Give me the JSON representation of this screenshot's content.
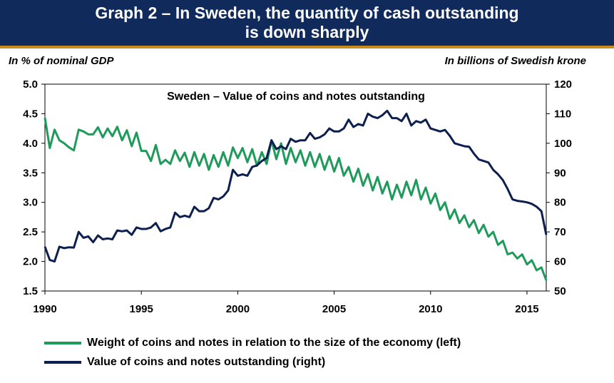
{
  "header": {
    "title_line1": "Graph 2 – In Sweden, the quantity of cash outstanding",
    "title_line2": "is down sharply"
  },
  "colors": {
    "header_bg": "#102a5c",
    "header_rule": "#c98a1d",
    "green": "#1e9b5a",
    "navy": "#0d1f4f"
  },
  "chart_data": {
    "type": "line",
    "title": "Sweden – Value of coins and notes outstanding",
    "left_axis_label": "In % of nominal GDP",
    "right_axis_label": "In billions of Swedish krone",
    "x_ticks": [
      1990,
      1995,
      2000,
      2005,
      2010,
      2015
    ],
    "xlim": [
      1990,
      2016
    ],
    "y_left_ticks": [
      "5.0",
      "4.5",
      "4.0",
      "3.5",
      "3.0",
      "2.5",
      "2.0",
      "1.5"
    ],
    "y_left_lim": [
      1.5,
      5.0
    ],
    "y_right_ticks": [
      "120",
      "110",
      "100",
      "90",
      "80",
      "70",
      "60",
      "50"
    ],
    "y_right_lim": [
      50,
      120
    ],
    "series": [
      {
        "name": "Weight of coins and notes in relation to the size of the economy (left)",
        "axis": "left",
        "color": "#1e9b5a",
        "points": [
          [
            1990.0,
            4.43
          ],
          [
            1990.25,
            3.92
          ],
          [
            1990.5,
            4.23
          ],
          [
            1990.75,
            4.05
          ],
          [
            1991.0,
            4.0
          ],
          [
            1991.25,
            3.93
          ],
          [
            1991.5,
            3.88
          ],
          [
            1991.75,
            4.23
          ],
          [
            1992.0,
            4.2
          ],
          [
            1992.25,
            4.15
          ],
          [
            1992.5,
            4.15
          ],
          [
            1992.75,
            4.27
          ],
          [
            1993.0,
            4.1
          ],
          [
            1993.25,
            4.25
          ],
          [
            1993.5,
            4.12
          ],
          [
            1993.75,
            4.28
          ],
          [
            1994.0,
            4.05
          ],
          [
            1994.25,
            4.22
          ],
          [
            1994.5,
            3.95
          ],
          [
            1994.75,
            4.18
          ],
          [
            1995.0,
            3.87
          ],
          [
            1995.25,
            3.87
          ],
          [
            1995.5,
            3.7
          ],
          [
            1995.75,
            3.97
          ],
          [
            1996.0,
            3.65
          ],
          [
            1996.25,
            3.72
          ],
          [
            1996.5,
            3.65
          ],
          [
            1996.75,
            3.88
          ],
          [
            1997.0,
            3.7
          ],
          [
            1997.25,
            3.84
          ],
          [
            1997.5,
            3.6
          ],
          [
            1997.75,
            3.85
          ],
          [
            1998.0,
            3.62
          ],
          [
            1998.25,
            3.82
          ],
          [
            1998.5,
            3.55
          ],
          [
            1998.75,
            3.8
          ],
          [
            1999.0,
            3.6
          ],
          [
            1999.25,
            3.85
          ],
          [
            1999.5,
            3.62
          ],
          [
            1999.75,
            3.93
          ],
          [
            2000.0,
            3.75
          ],
          [
            2000.25,
            3.92
          ],
          [
            2000.5,
            3.68
          ],
          [
            2000.75,
            3.9
          ],
          [
            2001.0,
            3.62
          ],
          [
            2001.25,
            3.85
          ],
          [
            2001.5,
            3.65
          ],
          [
            2001.75,
            4.05
          ],
          [
            2002.0,
            3.73
          ],
          [
            2002.25,
            4.0
          ],
          [
            2002.5,
            3.65
          ],
          [
            2002.75,
            3.92
          ],
          [
            2003.0,
            3.68
          ],
          [
            2003.25,
            3.88
          ],
          [
            2003.5,
            3.62
          ],
          [
            2003.75,
            3.85
          ],
          [
            2004.0,
            3.6
          ],
          [
            2004.25,
            3.82
          ],
          [
            2004.5,
            3.55
          ],
          [
            2004.75,
            3.78
          ],
          [
            2005.0,
            3.52
          ],
          [
            2005.25,
            3.75
          ],
          [
            2005.5,
            3.45
          ],
          [
            2005.75,
            3.6
          ],
          [
            2006.0,
            3.35
          ],
          [
            2006.25,
            3.57
          ],
          [
            2006.5,
            3.28
          ],
          [
            2006.75,
            3.48
          ],
          [
            2007.0,
            3.2
          ],
          [
            2007.25,
            3.43
          ],
          [
            2007.5,
            3.15
          ],
          [
            2007.75,
            3.35
          ],
          [
            2008.0,
            3.05
          ],
          [
            2008.25,
            3.3
          ],
          [
            2008.5,
            3.08
          ],
          [
            2008.75,
            3.35
          ],
          [
            2009.0,
            3.12
          ],
          [
            2009.25,
            3.38
          ],
          [
            2009.5,
            3.05
          ],
          [
            2009.75,
            3.25
          ],
          [
            2010.0,
            2.98
          ],
          [
            2010.25,
            3.15
          ],
          [
            2010.5,
            2.87
          ],
          [
            2010.75,
            3.0
          ],
          [
            2011.0,
            2.72
          ],
          [
            2011.25,
            2.88
          ],
          [
            2011.5,
            2.65
          ],
          [
            2011.75,
            2.78
          ],
          [
            2012.0,
            2.58
          ],
          [
            2012.25,
            2.7
          ],
          [
            2012.5,
            2.48
          ],
          [
            2012.75,
            2.62
          ],
          [
            2013.0,
            2.42
          ],
          [
            2013.25,
            2.5
          ],
          [
            2013.5,
            2.28
          ],
          [
            2013.75,
            2.35
          ],
          [
            2014.0,
            2.12
          ],
          [
            2014.25,
            2.15
          ],
          [
            2014.5,
            2.05
          ],
          [
            2014.75,
            2.12
          ],
          [
            2015.0,
            1.95
          ],
          [
            2015.25,
            2.02
          ],
          [
            2015.5,
            1.85
          ],
          [
            2015.75,
            1.9
          ],
          [
            2016.0,
            1.68
          ]
        ]
      },
      {
        "name": "Value of coins and notes outstanding (right)",
        "axis": "right",
        "color": "#0d1f4f",
        "points": [
          [
            1990.0,
            65
          ],
          [
            1990.25,
            60.5
          ],
          [
            1990.5,
            60
          ],
          [
            1990.75,
            65
          ],
          [
            1991.0,
            64.5
          ],
          [
            1991.25,
            64.8
          ],
          [
            1991.5,
            64.7
          ],
          [
            1991.75,
            70
          ],
          [
            1992.0,
            68
          ],
          [
            1992.25,
            68.5
          ],
          [
            1992.5,
            66.5
          ],
          [
            1992.75,
            68.8
          ],
          [
            1993.0,
            67.5
          ],
          [
            1993.25,
            67.8
          ],
          [
            1993.5,
            67.5
          ],
          [
            1993.75,
            70.5
          ],
          [
            1994.0,
            70.2
          ],
          [
            1994.25,
            70.5
          ],
          [
            1994.5,
            69
          ],
          [
            1994.75,
            71.5
          ],
          [
            1995.0,
            71
          ],
          [
            1995.25,
            71
          ],
          [
            1995.5,
            71.5
          ],
          [
            1995.75,
            73
          ],
          [
            1996.0,
            70.2
          ],
          [
            1996.25,
            71
          ],
          [
            1996.5,
            71.5
          ],
          [
            1996.75,
            76.5
          ],
          [
            1997.0,
            75
          ],
          [
            1997.25,
            75.5
          ],
          [
            1997.5,
            75
          ],
          [
            1997.75,
            78.5
          ],
          [
            1998.0,
            77
          ],
          [
            1998.25,
            77
          ],
          [
            1998.5,
            78
          ],
          [
            1998.75,
            81.5
          ],
          [
            1999.0,
            81
          ],
          [
            1999.25,
            82
          ],
          [
            1999.5,
            84
          ],
          [
            1999.75,
            91
          ],
          [
            2000.0,
            89
          ],
          [
            2000.25,
            89.5
          ],
          [
            2000.5,
            89
          ],
          [
            2000.75,
            92
          ],
          [
            2001.0,
            92.5
          ],
          [
            2001.25,
            94
          ],
          [
            2001.5,
            95
          ],
          [
            2001.75,
            101
          ],
          [
            2002.0,
            98
          ],
          [
            2002.25,
            99
          ],
          [
            2002.5,
            98
          ],
          [
            2002.75,
            101.5
          ],
          [
            2003.0,
            100.5
          ],
          [
            2003.25,
            101
          ],
          [
            2003.5,
            101
          ],
          [
            2003.75,
            103.5
          ],
          [
            2004.0,
            101.5
          ],
          [
            2004.25,
            102
          ],
          [
            2004.5,
            103
          ],
          [
            2004.75,
            105
          ],
          [
            2005.0,
            104
          ],
          [
            2005.25,
            104
          ],
          [
            2005.5,
            105
          ],
          [
            2005.75,
            108
          ],
          [
            2006.0,
            105.5
          ],
          [
            2006.25,
            106.5
          ],
          [
            2006.5,
            106
          ],
          [
            2006.75,
            110
          ],
          [
            2007.0,
            109
          ],
          [
            2007.25,
            108.5
          ],
          [
            2007.5,
            109.5
          ],
          [
            2007.75,
            111
          ],
          [
            2008.0,
            108.5
          ],
          [
            2008.25,
            108.5
          ],
          [
            2008.5,
            107.5
          ],
          [
            2008.75,
            110
          ],
          [
            2009.0,
            106
          ],
          [
            2009.25,
            107.5
          ],
          [
            2009.5,
            107
          ],
          [
            2009.75,
            108
          ],
          [
            2010.0,
            105
          ],
          [
            2010.25,
            104.5
          ],
          [
            2010.5,
            104
          ],
          [
            2010.75,
            104.5
          ],
          [
            2011.0,
            102.5
          ],
          [
            2011.25,
            100
          ],
          [
            2011.5,
            99.5
          ],
          [
            2011.75,
            99
          ],
          [
            2012.0,
            98.8
          ],
          [
            2012.25,
            96.5
          ],
          [
            2012.5,
            94.5
          ],
          [
            2012.75,
            94
          ],
          [
            2013.0,
            93.5
          ],
          [
            2013.25,
            91
          ],
          [
            2013.5,
            89.5
          ],
          [
            2013.75,
            87.5
          ],
          [
            2014.0,
            84.5
          ],
          [
            2014.25,
            81
          ],
          [
            2014.5,
            80.5
          ],
          [
            2014.75,
            80.3
          ],
          [
            2015.0,
            80
          ],
          [
            2015.25,
            79.5
          ],
          [
            2015.5,
            78.5
          ],
          [
            2015.75,
            77
          ],
          [
            2016.0,
            69
          ]
        ]
      }
    ]
  }
}
